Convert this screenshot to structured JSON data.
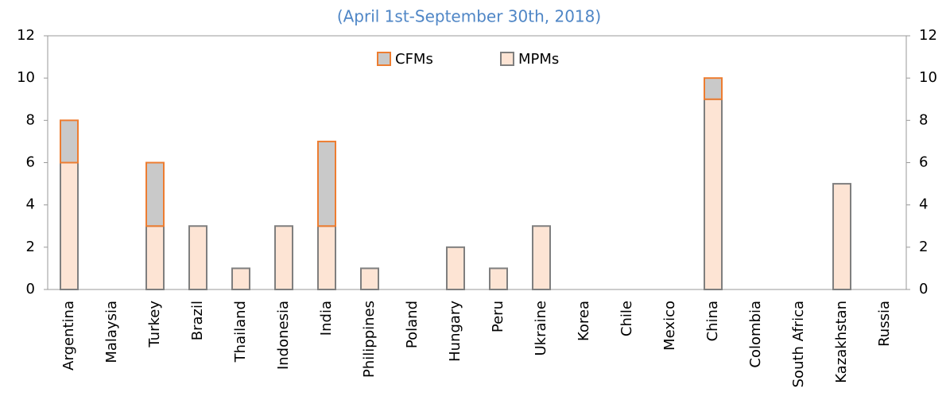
{
  "chart_data": {
    "type": "bar",
    "stacked": true,
    "title": "(April 1st-September 30th, 2018)",
    "categories": [
      "Argentina",
      "Malaysia",
      "Turkey",
      "Brazil",
      "Thailand",
      "Indonesia",
      "India",
      "Philippines",
      "Poland",
      "Hungary",
      "Peru",
      "Ukraine",
      "Korea",
      "Chile",
      "Mexico",
      "China",
      "Colombia",
      "South Africa",
      "Kazakhstan",
      "Russia"
    ],
    "series": [
      {
        "name": "MPMs",
        "color": "#fde4d4",
        "edge": "#7f7f7f",
        "values": [
          6,
          0,
          3,
          3,
          1,
          3,
          3,
          1,
          0,
          2,
          1,
          3,
          0,
          0,
          0,
          9,
          0,
          0,
          5,
          0
        ]
      },
      {
        "name": "CFMs",
        "color": "#c9c9c9",
        "edge": "#ed7d31",
        "values": [
          2,
          0,
          3,
          0,
          0,
          0,
          4,
          0,
          0,
          0,
          0,
          0,
          0,
          0,
          0,
          1,
          0,
          0,
          0,
          0
        ]
      }
    ],
    "ylim": [
      0,
      12
    ],
    "yticks": [
      0,
      2,
      4,
      6,
      8,
      10,
      12
    ],
    "y2lim": [
      0,
      12
    ],
    "y2ticks": [
      0,
      2,
      4,
      6,
      8,
      10,
      12
    ],
    "grid": false,
    "legend": "top"
  }
}
